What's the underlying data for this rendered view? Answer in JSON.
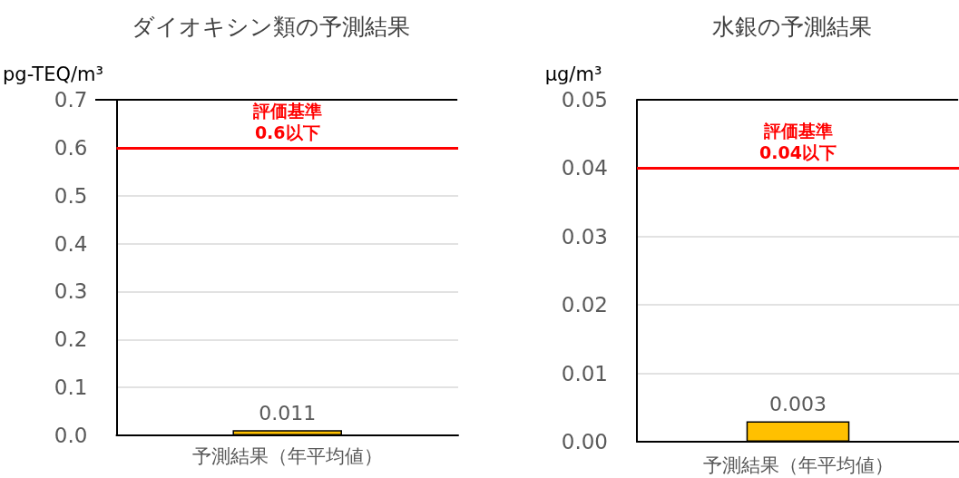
{
  "chart_data": [
    {
      "type": "bar",
      "title": "ダイオキシン類の予測結果",
      "ylabel": "pg-TEQ/m³",
      "categories": [
        "予測結果（年平均値）"
      ],
      "values": [
        0.011
      ],
      "color": "#ffc000",
      "data_labels": true,
      "ylim": [
        0,
        0.7
      ],
      "yticks": [
        {
          "value": 0,
          "label": "0.0"
        },
        0.1,
        0.2,
        0.3,
        0.4,
        0.5,
        0.6,
        0.7
      ],
      "grid": "y",
      "ref_lines": [
        {
          "axis": "y",
          "value": 0.6,
          "label": "評価基準\n0.6以下",
          "color": "#ff0000",
          "line_style": "solid"
        }
      ]
    },
    {
      "type": "bar",
      "title": "水銀の予測結果",
      "ylabel": "μg/m³",
      "categories": [
        "予測結果（年平均値）"
      ],
      "values": [
        0.003
      ],
      "color": "#ffc000",
      "data_labels": true,
      "ylim": [
        0,
        0.05
      ],
      "yticks": [
        {
          "value": 0,
          "label": "0.00"
        },
        {
          "value": 0.01,
          "label": "0.01"
        },
        {
          "value": 0.02,
          "label": "0.02"
        },
        {
          "value": 0.03,
          "label": "0.03"
        },
        {
          "value": 0.04,
          "label": "0.04"
        },
        {
          "value": 0.05,
          "label": "0.05"
        }
      ],
      "grid": "y",
      "ref_lines": [
        {
          "axis": "y",
          "value": 0.04,
          "label": "評価基準\n0.04以下",
          "color": "#ff0000",
          "line_style": "solid"
        }
      ]
    }
  ]
}
